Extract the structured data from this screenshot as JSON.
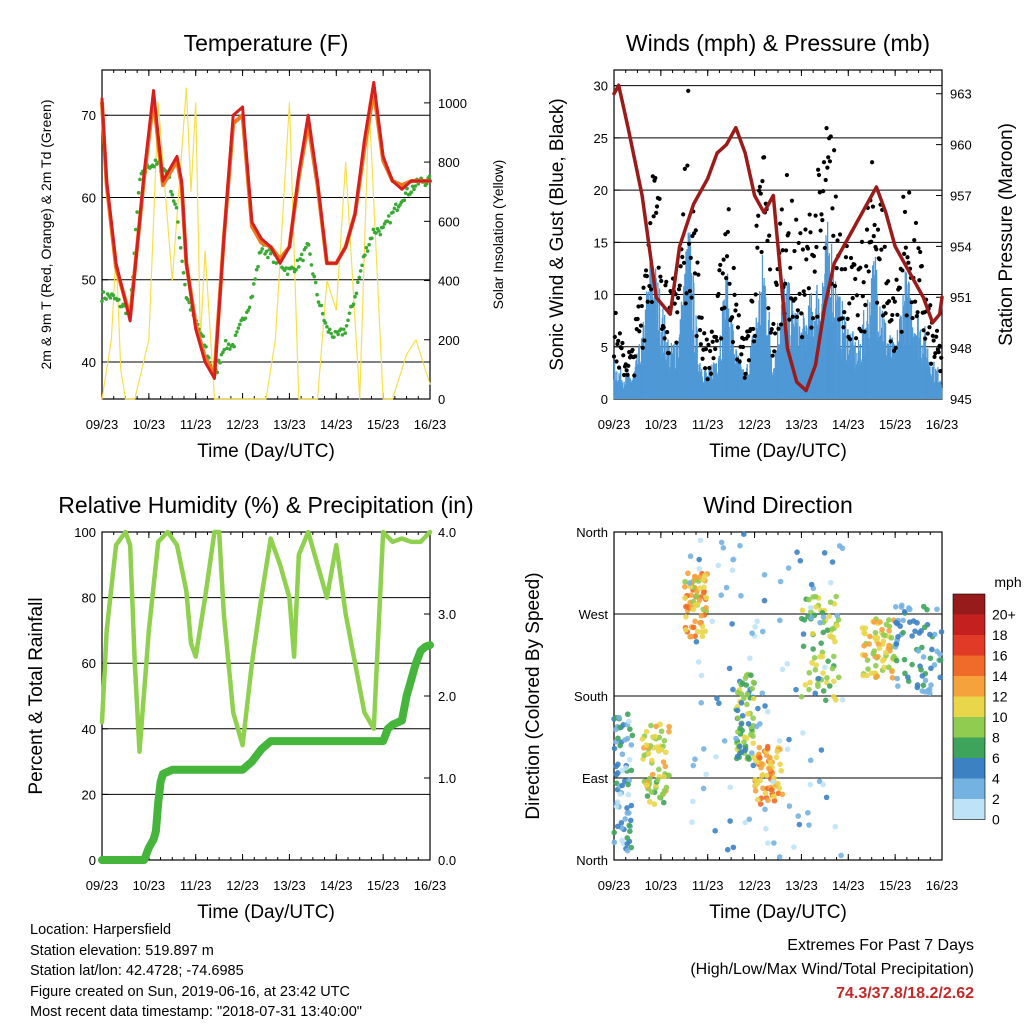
{
  "chart_data": [
    {
      "type": "line",
      "title": "Temperature (F)",
      "xlabel": "Time (Day/UTC)",
      "ylabel": "2m & 9m T (Red, Orange) & 2m Td (Green)",
      "ylabel_right": "Solar Insolation (Yellow)",
      "x_ticks": [
        "09/23",
        "10/23",
        "11/23",
        "12/23",
        "13/23",
        "14/23",
        "15/23",
        "16/23"
      ],
      "y_ticks": [
        40,
        50,
        60,
        70
      ],
      "y_ticks_right": [
        0,
        200,
        400,
        600,
        800,
        1000
      ],
      "ylim": [
        35.5,
        75.5
      ],
      "ylim_right": [
        0,
        1111
      ],
      "series": [
        {
          "name": "2m T",
          "color": "#d62020",
          "x": [
            0,
            0.1,
            0.3,
            0.6,
            0.9,
            1.1,
            1.3,
            1.5,
            1.6,
            1.7,
            1.8,
            2.0,
            2.2,
            2.4,
            2.6,
            2.8,
            3.0,
            3.2,
            3.4,
            3.6,
            3.8,
            4.0,
            4.2,
            4.4,
            4.6,
            4.8,
            5.0,
            5.2,
            5.4,
            5.6,
            5.8,
            6.0,
            6.2,
            6.4,
            6.6,
            6.8,
            7.0
          ],
          "values": [
            72,
            62,
            52,
            45,
            63,
            73,
            62,
            64,
            65,
            62,
            52,
            44,
            40,
            38,
            55,
            70,
            71,
            57,
            55,
            54,
            52,
            54,
            63,
            70,
            62,
            52,
            52,
            54,
            58,
            67,
            74,
            65,
            62,
            61,
            62,
            62,
            62
          ]
        },
        {
          "name": "9m T",
          "color": "#ee7a1e",
          "x": [
            0,
            0.1,
            0.3,
            0.6,
            0.9,
            1.1,
            1.3,
            1.5,
            1.6,
            1.7,
            1.8,
            2.0,
            2.2,
            2.4,
            2.6,
            2.8,
            3.0,
            3.2,
            3.4,
            3.6,
            3.8,
            4.0,
            4.2,
            4.4,
            4.6,
            4.8,
            5.0,
            5.2,
            5.4,
            5.6,
            5.8,
            6.0,
            6.2,
            6.4,
            6.6,
            6.8,
            7.0
          ],
          "values": [
            71.5,
            61.5,
            51.5,
            45.5,
            62.5,
            72,
            61.5,
            63.5,
            64.5,
            61.5,
            52,
            44.5,
            40.5,
            38.5,
            55,
            69,
            70,
            56.5,
            54.5,
            54,
            52.5,
            54,
            62.5,
            69,
            61.5,
            52,
            52,
            54,
            58,
            66,
            73,
            64.5,
            62,
            61.5,
            62,
            62,
            62
          ]
        },
        {
          "name": "2m Td",
          "color": "#3aaa35",
          "x": [
            0,
            0.2,
            0.4,
            0.6,
            0.8,
            1.0,
            1.2,
            1.4,
            1.6,
            1.8,
            2.0,
            2.2,
            2.4,
            2.6,
            2.8,
            3.0,
            3.2,
            3.4,
            3.6,
            3.8,
            4.0,
            4.2,
            4.4,
            4.6,
            4.8,
            5.0,
            5.2,
            5.4,
            5.6,
            5.8,
            6.0,
            6.2,
            6.4,
            6.6,
            6.8,
            7.0
          ],
          "values": [
            48,
            48,
            47,
            46,
            62,
            64,
            64,
            63,
            58,
            48,
            45,
            42,
            38,
            42,
            42,
            45,
            48,
            54,
            53,
            52,
            51,
            52,
            54,
            48,
            44,
            43,
            44,
            48,
            53,
            56,
            56,
            58,
            60,
            61,
            62,
            62
          ]
        },
        {
          "name": "Solar Insolation",
          "color": "#f6e04a",
          "axis": "right",
          "x": [
            0,
            0.2,
            0.3,
            0.4,
            0.5,
            0.7,
            1.0,
            1.2,
            1.5,
            1.8,
            1.9,
            2.0,
            2.1,
            2.2,
            2.4,
            2.6,
            3.0,
            3.5,
            3.7,
            4.0,
            4.2,
            4.6,
            4.8,
            5.0,
            5.2,
            5.5,
            5.7,
            6.0,
            6.2,
            6.5,
            6.7,
            7.0
          ],
          "values": [
            0,
            200,
            500,
            100,
            0,
            0,
            200,
            1000,
            400,
            1050,
            700,
            1000,
            200,
            500,
            0,
            0,
            0,
            0,
            200,
            1000,
            0,
            0,
            400,
            300,
            800,
            0,
            1000,
            0,
            0,
            150,
            200,
            50
          ]
        }
      ]
    },
    {
      "type": "line",
      "title": "Winds (mph) & Pressure (mb)",
      "xlabel": "Time (Day/UTC)",
      "ylabel": "Sonic Wind & Gust (Blue, Black)",
      "ylabel_right": "Station Pressure (Maroon)",
      "x_ticks": [
        "09/23",
        "10/23",
        "11/23",
        "12/23",
        "13/23",
        "14/23",
        "15/23",
        "16/23"
      ],
      "y_ticks": [
        0,
        5,
        10,
        15,
        20,
        25,
        30
      ],
      "y_ticks_right": [
        945,
        948,
        951,
        954,
        957,
        960,
        963
      ],
      "ylim": [
        0,
        31.5
      ],
      "ylim_right": [
        945,
        964.4
      ],
      "series": [
        {
          "name": "Sonic Wind",
          "color": "#4f98d6",
          "x": [
            0,
            0.2,
            0.4,
            0.6,
            0.8,
            1.0,
            1.2,
            1.4,
            1.6,
            1.8,
            2.0,
            2.2,
            2.4,
            2.6,
            2.8,
            3.0,
            3.2,
            3.4,
            3.6,
            3.8,
            4.0,
            4.2,
            4.4,
            4.6,
            4.8,
            5.0,
            5.2,
            5.4,
            5.6,
            5.8,
            6.0,
            6.2,
            6.4,
            6.6,
            6.8,
            7.0
          ],
          "values": [
            3,
            2,
            2,
            5,
            12,
            8,
            4,
            6,
            14,
            4,
            2,
            4,
            10,
            4,
            2,
            6,
            12,
            3,
            10,
            8,
            6,
            8,
            10,
            14,
            8,
            6,
            4,
            8,
            12,
            6,
            4,
            10,
            8,
            6,
            3,
            2
          ]
        },
        {
          "name": "Gust",
          "color": "#000000",
          "x": [
            0,
            0.2,
            0.4,
            0.6,
            0.8,
            1.0,
            1.2,
            1.4,
            1.6,
            1.8,
            2.0,
            2.2,
            2.4,
            2.6,
            2.8,
            3.0,
            3.2,
            3.4,
            3.6,
            3.8,
            4.0,
            4.2,
            4.4,
            4.6,
            4.8,
            5.0,
            5.2,
            5.4,
            5.6,
            5.8,
            6.0,
            6.2,
            6.4,
            6.6,
            6.8,
            7.0
          ],
          "values": [
            7,
            4,
            4,
            10,
            20,
            15,
            8,
            12,
            24,
            10,
            4,
            7,
            18,
            8,
            4,
            11,
            22,
            6,
            18,
            15,
            12,
            15,
            18,
            22,
            16,
            12,
            9,
            15,
            20,
            12,
            8,
            17,
            14,
            10,
            6,
            4
          ]
        },
        {
          "name": "Station Pressure",
          "color": "#9b1b1b",
          "axis": "right",
          "x": [
            0,
            0.1,
            0.3,
            0.6,
            0.9,
            1.2,
            1.4,
            1.7,
            2.0,
            2.2,
            2.4,
            2.6,
            2.8,
            3.0,
            3.2,
            3.4,
            3.7,
            3.9,
            4.1,
            4.3,
            4.5,
            4.7,
            5.0,
            5.3,
            5.6,
            5.8,
            6.0,
            6.2,
            6.4,
            6.6,
            6.8,
            6.95,
            7.0
          ],
          "values": [
            963,
            963.5,
            961,
            957,
            951,
            950,
            954,
            956.5,
            958,
            959.5,
            960,
            961,
            959.5,
            957,
            956,
            957,
            948,
            946,
            945.5,
            947,
            950.5,
            953,
            954.5,
            956,
            957.5,
            956,
            954,
            953,
            952,
            951,
            949.5,
            950,
            951
          ]
        }
      ]
    },
    {
      "type": "line",
      "title": "Relative Humidity (%) & Precipitation (in)",
      "xlabel": "Time (Day/UTC)",
      "ylabel": "Percent & Total Rainfall",
      "x_ticks": [
        "09/23",
        "10/23",
        "11/23",
        "12/23",
        "13/23",
        "14/23",
        "15/23",
        "16/23"
      ],
      "y_ticks": [
        0,
        20,
        40,
        60,
        80,
        100
      ],
      "y_ticks_right": [
        "0.0",
        "1.0",
        "2.0",
        "3.0",
        "4.0"
      ],
      "ylim": [
        0,
        100
      ],
      "ylim_right": [
        0,
        4
      ],
      "series": [
        {
          "name": "Relative Humidity",
          "color": "#8fd14f",
          "x": [
            0,
            0.1,
            0.3,
            0.5,
            0.6,
            0.7,
            0.8,
            1.0,
            1.2,
            1.4,
            1.6,
            1.8,
            1.9,
            2.0,
            2.2,
            2.4,
            2.5,
            2.6,
            2.8,
            3.0,
            3.2,
            3.4,
            3.6,
            3.8,
            4.0,
            4.1,
            4.2,
            4.4,
            4.6,
            4.8,
            5.0,
            5.2,
            5.4,
            5.6,
            5.8,
            6.0,
            6.2,
            6.4,
            6.6,
            6.8,
            7.0
          ],
          "values": [
            42,
            70,
            96,
            100,
            96,
            60,
            33,
            70,
            97,
            100,
            96,
            82,
            66,
            62,
            80,
            100,
            100,
            75,
            45,
            35,
            60,
            80,
            98,
            90,
            80,
            62,
            93,
            100,
            90,
            80,
            96,
            75,
            60,
            45,
            40,
            100,
            97,
            98,
            97,
            97,
            100
          ]
        },
        {
          "name": "Total Precipitation",
          "color": "#46b53c",
          "axis": "right",
          "x": [
            0,
            0.9,
            1.0,
            1.1,
            1.15,
            1.2,
            1.25,
            1.3,
            1.5,
            2.0,
            2.5,
            3.0,
            3.2,
            3.4,
            3.6,
            4.0,
            4.5,
            5.0,
            5.5,
            6.0,
            6.1,
            6.2,
            6.4,
            6.5,
            6.7,
            6.8,
            6.9,
            7.0
          ],
          "values": [
            0,
            0,
            0.15,
            0.25,
            0.35,
            0.7,
            0.95,
            1.05,
            1.1,
            1.1,
            1.1,
            1.1,
            1.2,
            1.35,
            1.45,
            1.45,
            1.45,
            1.45,
            1.45,
            1.45,
            1.6,
            1.65,
            1.7,
            2.0,
            2.4,
            2.55,
            2.6,
            2.62
          ]
        }
      ]
    },
    {
      "type": "scatter",
      "title": "Wind Direction",
      "xlabel": "Time (Day/UTC)",
      "ylabel": "Direction (Colored By Speed)",
      "x_ticks": [
        "09/23",
        "10/23",
        "11/23",
        "12/23",
        "13/23",
        "14/23",
        "15/23",
        "16/23"
      ],
      "y_ticks": [
        "North",
        "East",
        "South",
        "West",
        "North"
      ],
      "ylim": [
        0,
        360
      ],
      "colorbar_label": "mph",
      "colorbar_ticks": [
        "20+",
        "18",
        "16",
        "14",
        "12",
        "10",
        "8",
        "6",
        "4",
        "2",
        "0"
      ],
      "colorbar_colors": [
        "#ffffff",
        "#971b1b",
        "#c42020",
        "#e13b27",
        "#f06a2a",
        "#f6a23c",
        "#e9d64a",
        "#8fcc4f",
        "#3fa45b",
        "#3c82c2",
        "#74b3e1",
        "#bfe3f6"
      ],
      "clusters": [
        {
          "x_start": 0.0,
          "x_end": 0.4,
          "dir_low": 10,
          "dir_high": 160,
          "speed": 3
        },
        {
          "x_start": 0.6,
          "x_end": 1.2,
          "dir_low": 60,
          "dir_high": 150,
          "speed": 9
        },
        {
          "x_start": 1.5,
          "x_end": 2.0,
          "dir_low": 245,
          "dir_high": 315,
          "speed": 11
        },
        {
          "x_start": 2.6,
          "x_end": 3.0,
          "dir_low": 110,
          "dir_high": 205,
          "speed": 7
        },
        {
          "x_start": 3.0,
          "x_end": 3.6,
          "dir_low": 60,
          "dir_high": 125,
          "speed": 12
        },
        {
          "x_start": 4.0,
          "x_end": 4.8,
          "dir_low": 175,
          "dir_high": 290,
          "speed": 8
        },
        {
          "x_start": 5.3,
          "x_end": 6.0,
          "dir_low": 200,
          "dir_high": 265,
          "speed": 10
        },
        {
          "x_start": 6.0,
          "x_end": 7.0,
          "dir_low": 180,
          "dir_high": 280,
          "speed": 4
        },
        {
          "x_start": 1.6,
          "x_end": 5.0,
          "dir_low": 0,
          "dir_high": 360,
          "speed": 2
        }
      ]
    }
  ],
  "info": {
    "location": "Location: Harpersfield",
    "elevation": "Station elevation: 519.897 m",
    "latlon": "Station lat/lon: 42.4728; -74.6985",
    "created": "Figure created on Sun, 2019-06-16, at 23:42 UTC",
    "recent": "Most recent data timestamp: \"2018-07-31 13:40:00\""
  },
  "extremes": {
    "title": "Extremes For Past 7 Days",
    "subtitle": "(High/Low/Max Wind/Total Precipitation)",
    "values": "74.3/37.8/18.2/2.62"
  }
}
